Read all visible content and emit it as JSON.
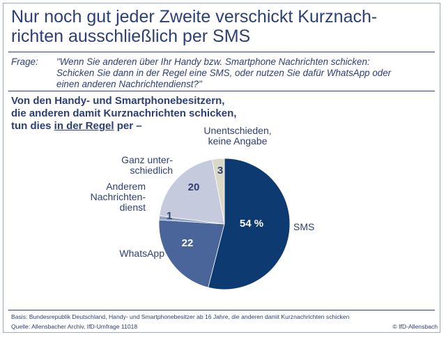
{
  "title_line1": "Nur noch gut jeder Zweite verschickt Kurznach-",
  "title_line2": "richten ausschließlich per SMS",
  "question_label": "Frage:",
  "question_lines": [
    "\"Wenn Sie anderen über Ihr Handy bzw. Smartphone Nachrichten schicken:",
    "Schicken Sie dann in der Regel eine SMS, oder nutzen Sie dafür WhatsApp oder",
    "einen anderen Nachrichtendienst?\""
  ],
  "lead_line1": "Von den Handy- und Smartphonebesitzern,",
  "lead_line2": "die anderen damit Kurznachrichten schicken,",
  "lead_line3_pre": "tun dies ",
  "lead_line3_u": "in der Regel",
  "lead_line3_post": " per –",
  "chart_data": {
    "type": "pie",
    "slices": [
      {
        "label_lines": [
          "SMS"
        ],
        "value": 54,
        "value_label": "54 %",
        "color": "#0d3a70"
      },
      {
        "label_lines": [
          "WhatsApp"
        ],
        "value": 22,
        "value_label": "22",
        "color": "#4a6599"
      },
      {
        "label_lines": [
          "Anderem",
          "Nachrichten-",
          "dienst"
        ],
        "value": 1,
        "value_label": "1",
        "color": "#8fa1c4"
      },
      {
        "label_lines": [
          "Ganz unter-",
          "schiedlich"
        ],
        "value": 20,
        "value_label": "20",
        "color": "#c5cbdc"
      },
      {
        "label_lines": [
          "Unentschieden,",
          "keine Angabe"
        ],
        "value": 3,
        "value_label": "3",
        "color": "#dcd8c6"
      }
    ]
  },
  "footer": {
    "basis": "Basis: Bundesrepublik Deutschland, Handy- und Smartphonebesitzer ab 16 Jahre, die anderen damit Kurznachrichten schicken",
    "source": "Quelle: Allensbacher Archiv, IfD-Umfrage 11018",
    "copyright": "© IfD-Allensbach"
  }
}
